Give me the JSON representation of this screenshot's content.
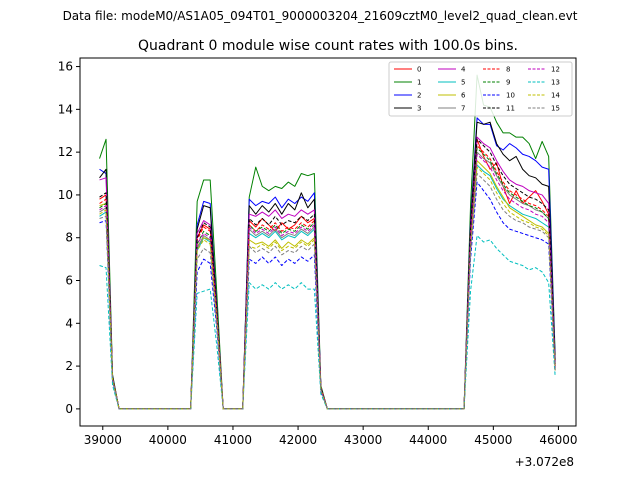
{
  "figure": {
    "suptitle": "Data file: modeM0/AS1A05_094T01_9000003204_21609cztM0_level2_quad_clean.evt"
  },
  "chart_data": {
    "type": "line",
    "title": "Quadrant 0 module wise count rates with 100.0s bins.",
    "xlabel": "",
    "ylabel": "",
    "x_offset_label": "+3.072e8",
    "x_offset": 307200000,
    "xlim": [
      38650,
      46270
    ],
    "ylim": [
      -0.8,
      16.4
    ],
    "xticks": [
      39000,
      40000,
      41000,
      42000,
      43000,
      44000,
      45000,
      46000
    ],
    "xtick_labels": [
      "39000",
      "40000",
      "41000",
      "42000",
      "43000",
      "44000",
      "45000",
      "46000"
    ],
    "yticks": [
      0,
      2,
      4,
      6,
      8,
      10,
      12,
      14,
      16
    ],
    "ytick_labels": [
      "0",
      "2",
      "4",
      "6",
      "8",
      "10",
      "12",
      "14",
      "16"
    ],
    "legend_position": "top-right",
    "x": [
      38950,
      39050,
      39150,
      39250,
      39350,
      39450,
      39550,
      39650,
      39750,
      39850,
      39950,
      40050,
      40150,
      40250,
      40350,
      40450,
      40550,
      40650,
      40750,
      40850,
      40950,
      41050,
      41150,
      41250,
      41350,
      41450,
      41550,
      41650,
      41750,
      41850,
      41950,
      42050,
      42150,
      42250,
      42350,
      42450,
      42550,
      42650,
      42750,
      42850,
      42950,
      43050,
      43150,
      43250,
      43350,
      43450,
      43550,
      43650,
      43750,
      43850,
      43950,
      44050,
      44150,
      44250,
      44350,
      44450,
      44550,
      44650,
      44750,
      44850,
      44950,
      45050,
      45150,
      45250,
      45350,
      45450,
      45550,
      45650,
      45750,
      45850,
      45950
    ],
    "series": [
      {
        "name": "0",
        "color": "#ff0000",
        "dash": "solid",
        "values": [
          9.8,
          10.0,
          1.5,
          0,
          0,
          0,
          0,
          0,
          0,
          0,
          0,
          0,
          0,
          0,
          0,
          8.0,
          8.6,
          8.4,
          4.6,
          0,
          0,
          0,
          0,
          8.8,
          8.5,
          8.9,
          8.6,
          8.3,
          8.7,
          8.4,
          8.6,
          9.0,
          8.7,
          8.9,
          1.0,
          0,
          0,
          0,
          0,
          0,
          0,
          0,
          0,
          0,
          0,
          0,
          0,
          0,
          0,
          0,
          0,
          0,
          0,
          0,
          0,
          0,
          0,
          8.0,
          12.6,
          11.8,
          11.2,
          11.5,
          10.4,
          9.6,
          10.2,
          9.6,
          9.9,
          10.2,
          9.7,
          9.1,
          2.0
        ]
      },
      {
        "name": "1",
        "color": "#008000",
        "dash": "solid",
        "values": [
          11.7,
          12.6,
          1.6,
          0,
          0,
          0,
          0,
          0,
          0,
          0,
          0,
          0,
          0,
          0,
          0,
          9.7,
          10.7,
          10.7,
          5.5,
          0,
          0,
          0,
          0,
          9.9,
          11.3,
          10.4,
          10.2,
          10.4,
          10.3,
          10.6,
          10.4,
          11.0,
          10.9,
          11.0,
          1.1,
          0,
          0,
          0,
          0,
          0,
          0,
          0,
          0,
          0,
          0,
          0,
          0,
          0,
          0,
          0,
          0,
          0,
          0,
          0,
          0,
          0,
          0,
          9.5,
          15.6,
          14.2,
          14.1,
          13.4,
          12.9,
          12.9,
          12.7,
          12.7,
          12.4,
          11.7,
          12.5,
          11.8,
          2.5
        ]
      },
      {
        "name": "2",
        "color": "#0000ff",
        "dash": "solid",
        "values": [
          11.2,
          11.0,
          1.5,
          0,
          0,
          0,
          0,
          0,
          0,
          0,
          0,
          0,
          0,
          0,
          0,
          8.6,
          9.7,
          9.6,
          4.8,
          0,
          0,
          0,
          0,
          9.8,
          9.5,
          9.7,
          9.6,
          9.9,
          9.4,
          9.8,
          9.6,
          9.9,
          9.7,
          10.1,
          1.0,
          0,
          0,
          0,
          0,
          0,
          0,
          0,
          0,
          0,
          0,
          0,
          0,
          0,
          0,
          0,
          0,
          0,
          0,
          0,
          0,
          0,
          0,
          8.8,
          13.6,
          13.3,
          13.3,
          12.3,
          12.1,
          12.4,
          12.2,
          11.9,
          11.8,
          11.6,
          11.3,
          11.2,
          2.3
        ]
      },
      {
        "name": "3",
        "color": "#000000",
        "dash": "solid",
        "values": [
          10.8,
          11.2,
          1.5,
          0,
          0,
          0,
          0,
          0,
          0,
          0,
          0,
          0,
          0,
          0,
          0,
          8.4,
          9.5,
          9.4,
          4.7,
          0,
          0,
          0,
          0,
          9.5,
          9.1,
          9.5,
          9.2,
          9.6,
          9.1,
          9.6,
          9.3,
          10.1,
          9.4,
          9.8,
          1.0,
          0,
          0,
          0,
          0,
          0,
          0,
          0,
          0,
          0,
          0,
          0,
          0,
          0,
          0,
          0,
          0,
          0,
          0,
          0,
          0,
          0,
          0,
          8.6,
          13.4,
          13.3,
          13.4,
          12.4,
          11.9,
          11.6,
          11.8,
          11.2,
          10.9,
          10.8,
          10.5,
          10.4,
          2.2
        ]
      },
      {
        "name": "4",
        "color": "#bf00bf",
        "dash": "solid",
        "values": [
          10.7,
          10.8,
          1.5,
          0,
          0,
          0,
          0,
          0,
          0,
          0,
          0,
          0,
          0,
          0,
          0,
          8.2,
          8.8,
          8.6,
          4.6,
          0,
          0,
          0,
          0,
          9.1,
          9.0,
          9.2,
          9.0,
          9.3,
          8.9,
          9.1,
          9.0,
          9.3,
          9.1,
          9.3,
          1.0,
          0,
          0,
          0,
          0,
          0,
          0,
          0,
          0,
          0,
          0,
          0,
          0,
          0,
          0,
          0,
          0,
          0,
          0,
          0,
          0,
          0,
          0,
          8.4,
          12.7,
          12.4,
          12.2,
          11.6,
          11.1,
          10.7,
          10.5,
          10.4,
          10.2,
          10.1,
          10.0,
          9.6,
          2.1
        ]
      },
      {
        "name": "5",
        "color": "#00bfbf",
        "dash": "solid",
        "values": [
          9.0,
          9.2,
          1.4,
          0,
          0,
          0,
          0,
          0,
          0,
          0,
          0,
          0,
          0,
          0,
          0,
          7.4,
          8.0,
          7.8,
          4.2,
          0,
          0,
          0,
          0,
          8.2,
          8.0,
          8.2,
          8.0,
          8.3,
          7.9,
          8.1,
          8.0,
          8.3,
          8.1,
          8.4,
          0.9,
          0,
          0,
          0,
          0,
          0,
          0,
          0,
          0,
          0,
          0,
          0,
          0,
          0,
          0,
          0,
          0,
          0,
          0,
          0,
          0,
          0,
          0,
          7.8,
          11.4,
          11.1,
          10.9,
          10.3,
          9.8,
          9.5,
          9.3,
          9.1,
          9.0,
          8.9,
          8.7,
          8.5,
          1.9
        ]
      },
      {
        "name": "6",
        "color": "#bfbf00",
        "dash": "solid",
        "values": [
          9.5,
          9.6,
          1.4,
          0,
          0,
          0,
          0,
          0,
          0,
          0,
          0,
          0,
          0,
          0,
          0,
          7.6,
          8.0,
          7.9,
          4.3,
          0,
          0,
          0,
          0,
          7.9,
          7.7,
          7.8,
          7.6,
          7.9,
          7.5,
          7.8,
          7.6,
          7.9,
          7.7,
          8.0,
          0.9,
          0,
          0,
          0,
          0,
          0,
          0,
          0,
          0,
          0,
          0,
          0,
          0,
          0,
          0,
          0,
          0,
          0,
          0,
          0,
          0,
          0,
          0,
          7.6,
          11.6,
          11.3,
          11.0,
          10.4,
          9.9,
          9.4,
          9.2,
          9.0,
          8.8,
          8.6,
          8.5,
          8.2,
          1.8
        ]
      },
      {
        "name": "7",
        "color": "#808080",
        "dash": "solid",
        "values": [
          9.2,
          9.4,
          1.4,
          0,
          0,
          0,
          0,
          0,
          0,
          0,
          0,
          0,
          0,
          0,
          0,
          7.5,
          8.1,
          7.9,
          4.3,
          0,
          0,
          0,
          0,
          8.4,
          8.1,
          8.3,
          8.1,
          8.4,
          8.0,
          8.2,
          8.1,
          8.4,
          8.2,
          8.5,
          0.9,
          0,
          0,
          0,
          0,
          0,
          0,
          0,
          0,
          0,
          0,
          0,
          0,
          0,
          0,
          0,
          0,
          0,
          0,
          0,
          0,
          0,
          0,
          8.0,
          12.0,
          11.7,
          11.5,
          10.9,
          10.4,
          10.0,
          9.8,
          9.6,
          9.5,
          9.3,
          9.2,
          8.9,
          2.0
        ]
      },
      {
        "name": "8",
        "color": "#ff0000",
        "dash": "dashed",
        "values": [
          9.6,
          9.8,
          1.5,
          0,
          0,
          0,
          0,
          0,
          0,
          0,
          0,
          0,
          0,
          0,
          0,
          7.9,
          8.5,
          8.3,
          4.5,
          0,
          0,
          0,
          0,
          8.6,
          8.3,
          8.6,
          8.4,
          8.7,
          8.3,
          8.5,
          8.4,
          8.7,
          8.5,
          8.8,
          1.0,
          0,
          0,
          0,
          0,
          0,
          0,
          0,
          0,
          0,
          0,
          0,
          0,
          0,
          0,
          0,
          0,
          0,
          0,
          0,
          0,
          0,
          0,
          8.3,
          12.3,
          12.0,
          11.7,
          11.1,
          10.6,
          10.2,
          10.0,
          9.8,
          9.6,
          9.5,
          9.3,
          9.0,
          2.0
        ]
      },
      {
        "name": "9",
        "color": "#008000",
        "dash": "dashed",
        "values": [
          9.4,
          9.6,
          1.4,
          0,
          0,
          0,
          0,
          0,
          0,
          0,
          0,
          0,
          0,
          0,
          0,
          7.7,
          8.3,
          8.1,
          4.4,
          0,
          0,
          0,
          0,
          8.6,
          8.3,
          8.5,
          8.3,
          8.6,
          8.2,
          8.4,
          8.3,
          8.6,
          8.4,
          8.7,
          0.9,
          0,
          0,
          0,
          0,
          0,
          0,
          0,
          0,
          0,
          0,
          0,
          0,
          0,
          0,
          0,
          0,
          0,
          0,
          0,
          0,
          0,
          0,
          8.1,
          12.2,
          11.9,
          11.6,
          11.0,
          10.5,
          10.1,
          9.9,
          9.7,
          9.5,
          9.4,
          9.2,
          8.9,
          2.0
        ]
      },
      {
        "name": "10",
        "color": "#0000ff",
        "dash": "dashed",
        "values": [
          8.7,
          8.8,
          1.3,
          0,
          0,
          0,
          0,
          0,
          0,
          0,
          0,
          0,
          0,
          0,
          0,
          6.4,
          7.0,
          6.8,
          3.8,
          0,
          0,
          0,
          0,
          7.0,
          6.8,
          7.1,
          6.8,
          7.1,
          6.7,
          7.0,
          6.8,
          7.1,
          6.9,
          7.2,
          0.8,
          0,
          0,
          0,
          0,
          0,
          0,
          0,
          0,
          0,
          0,
          0,
          0,
          0,
          0,
          0,
          0,
          0,
          0,
          0,
          0,
          0,
          0,
          7.0,
          10.6,
          10.2,
          9.8,
          9.2,
          8.7,
          8.4,
          8.3,
          8.2,
          8.1,
          8.0,
          7.9,
          7.7,
          1.7
        ]
      },
      {
        "name": "11",
        "color": "#000000",
        "dash": "dashed",
        "values": [
          9.9,
          10.1,
          1.5,
          0,
          0,
          0,
          0,
          0,
          0,
          0,
          0,
          0,
          0,
          0,
          0,
          8.0,
          8.7,
          8.5,
          4.6,
          0,
          0,
          0,
          0,
          8.9,
          8.6,
          8.9,
          8.6,
          9.0,
          8.6,
          8.8,
          8.7,
          9.0,
          8.8,
          9.1,
          1.0,
          0,
          0,
          0,
          0,
          0,
          0,
          0,
          0,
          0,
          0,
          0,
          0,
          0,
          0,
          0,
          0,
          0,
          0,
          0,
          0,
          0,
          0,
          8.4,
          12.6,
          12.3,
          12.0,
          11.4,
          10.9,
          10.5,
          10.3,
          10.1,
          9.9,
          9.8,
          9.6,
          9.3,
          2.1
        ]
      },
      {
        "name": "12",
        "color": "#bf00bf",
        "dash": "dashed",
        "values": [
          9.3,
          9.5,
          1.4,
          0,
          0,
          0,
          0,
          0,
          0,
          0,
          0,
          0,
          0,
          0,
          0,
          7.7,
          8.2,
          8.0,
          4.4,
          0,
          0,
          0,
          0,
          8.5,
          8.2,
          8.4,
          8.2,
          8.5,
          8.1,
          8.3,
          8.2,
          8.5,
          8.3,
          8.6,
          0.9,
          0,
          0,
          0,
          0,
          0,
          0,
          0,
          0,
          0,
          0,
          0,
          0,
          0,
          0,
          0,
          0,
          0,
          0,
          0,
          0,
          0,
          0,
          8.0,
          11.9,
          11.6,
          11.3,
          10.7,
          10.2,
          9.8,
          9.6,
          9.4,
          9.3,
          9.1,
          9.0,
          8.7,
          1.9
        ]
      },
      {
        "name": "13",
        "color": "#00bfbf",
        "dash": "dashed",
        "values": [
          6.7,
          6.6,
          1.1,
          0,
          0,
          0,
          0,
          0,
          0,
          0,
          0,
          0,
          0,
          0,
          0,
          5.4,
          5.5,
          5.6,
          3.0,
          0,
          0,
          0,
          0,
          5.9,
          5.6,
          5.8,
          5.6,
          5.9,
          5.6,
          5.8,
          5.6,
          5.9,
          5.6,
          5.6,
          0.7,
          0,
          0,
          0,
          0,
          0,
          0,
          0,
          0,
          0,
          0,
          0,
          0,
          0,
          0,
          0,
          0,
          0,
          0,
          0,
          0,
          0,
          0,
          5.5,
          8.1,
          7.8,
          7.9,
          7.5,
          7.2,
          6.9,
          6.8,
          6.7,
          6.5,
          6.6,
          6.4,
          5.9,
          1.5
        ]
      },
      {
        "name": "14",
        "color": "#bfbf00",
        "dash": "dashed",
        "values": [
          9.1,
          9.3,
          1.4,
          0,
          0,
          0,
          0,
          0,
          0,
          0,
          0,
          0,
          0,
          0,
          0,
          7.4,
          7.9,
          7.7,
          4.2,
          0,
          0,
          0,
          0,
          7.6,
          7.5,
          7.7,
          7.5,
          7.8,
          7.4,
          7.6,
          7.5,
          7.8,
          7.6,
          7.9,
          0.9,
          0,
          0,
          0,
          0,
          0,
          0,
          0,
          0,
          0,
          0,
          0,
          0,
          0,
          0,
          0,
          0,
          0,
          0,
          0,
          0,
          0,
          0,
          7.5,
          11.3,
          11.0,
          10.7,
          10.1,
          9.6,
          9.2,
          9.0,
          8.8,
          8.7,
          8.5,
          8.4,
          8.1,
          1.8
        ]
      },
      {
        "name": "15",
        "color": "#808080",
        "dash": "dashed",
        "values": [
          8.9,
          9.0,
          1.4,
          0,
          0,
          0,
          0,
          0,
          0,
          0,
          0,
          0,
          0,
          0,
          0,
          7.0,
          7.5,
          7.3,
          4.0,
          0,
          0,
          0,
          0,
          7.6,
          7.3,
          7.5,
          7.3,
          7.6,
          7.2,
          7.4,
          7.3,
          7.6,
          7.4,
          7.7,
          0.9,
          0,
          0,
          0,
          0,
          0,
          0,
          0,
          0,
          0,
          0,
          0,
          0,
          0,
          0,
          0,
          0,
          0,
          0,
          0,
          0,
          0,
          0,
          7.3,
          11.0,
          10.7,
          10.4,
          9.8,
          9.3,
          9.0,
          8.8,
          8.7,
          8.5,
          8.4,
          8.3,
          8.0,
          1.8
        ]
      }
    ]
  }
}
